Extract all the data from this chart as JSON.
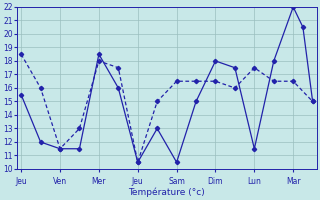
{
  "xlabel": "Température (°c)",
  "bg_color": "#c8e8e8",
  "grid_color": "#9bbfbf",
  "line_color": "#2222aa",
  "ylim": [
    10,
    22
  ],
  "yticks": [
    10,
    11,
    12,
    13,
    14,
    15,
    16,
    17,
    18,
    19,
    20,
    21,
    22
  ],
  "day_labels": [
    "Jeu",
    "Ven",
    "Mer",
    "Jeu",
    "Sam",
    "Dim",
    "Lun",
    "Mar"
  ],
  "day_x": [
    0,
    1,
    2,
    3,
    4,
    5,
    6,
    7
  ],
  "xlim": [
    -0.1,
    7.6
  ],
  "solid_x": [
    0,
    0.5,
    1.0,
    1.5,
    2.0,
    2.5,
    3.0,
    3.5,
    4.0,
    4.5,
    5.0,
    5.5,
    6.0,
    6.5,
    7.0,
    7.25,
    7.5
  ],
  "solid_y": [
    15.5,
    12.0,
    11.5,
    11.5,
    18.5,
    16.0,
    10.5,
    13.0,
    10.5,
    15.0,
    18.0,
    17.5,
    11.5,
    18.0,
    22.0,
    20.5,
    15.0
  ],
  "dashed_x": [
    0,
    0.5,
    1.0,
    1.5,
    2.0,
    2.5,
    3.0,
    3.5,
    4.0,
    4.5,
    5.0,
    5.5,
    6.0,
    6.5,
    7.0,
    7.5
  ],
  "dashed_y": [
    18.5,
    16.0,
    11.5,
    13.0,
    18.0,
    17.5,
    10.5,
    15.0,
    16.5,
    16.5,
    16.5,
    16.0,
    17.5,
    16.5,
    16.5,
    15.0
  ]
}
